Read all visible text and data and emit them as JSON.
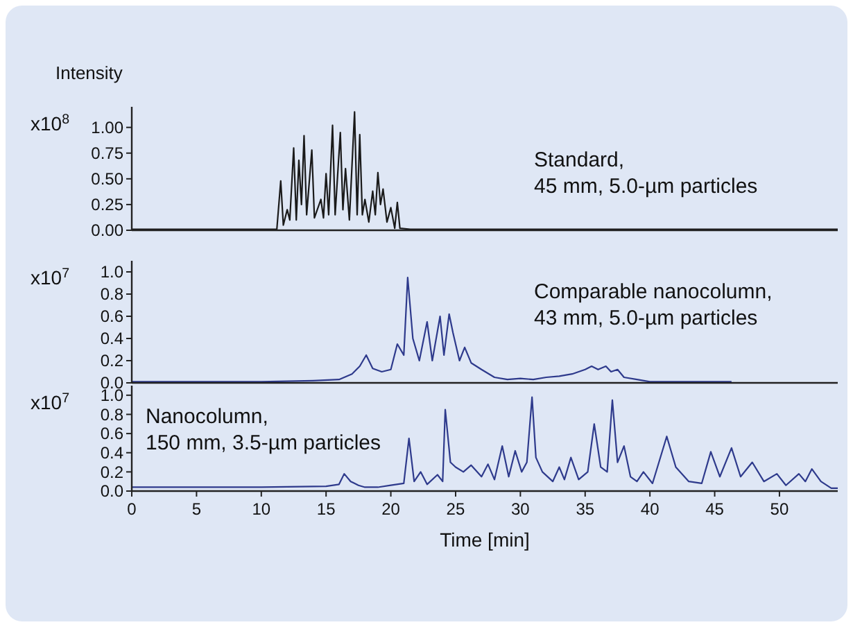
{
  "chart_data": [
    {
      "type": "line",
      "title": "Intensity",
      "ylabel": "x10$^{8}$",
      "annotations": [
        "Standard, \n45 mm, 5.0-µm particles"
      ],
      "tick_labels": "y",
      "xlim": [
        0,
        54.5
      ],
      "ylim": [
        0,
        1.2
      ],
      "yticks": [
        {
          "value": 0,
          "label": "0.00"
        },
        0.25,
        {
          "value": 0.5,
          "label": "0.50"
        },
        0.75,
        {
          "value": 1,
          "label": "1.00"
        }
      ],
      "series": [
        {
          "color": "#1a1a1a",
          "x": [
            0,
            10,
            11.2,
            11.5,
            11.7,
            12.0,
            12.2,
            12.5,
            12.7,
            12.9,
            13.1,
            13.3,
            13.5,
            13.9,
            14.1,
            14.6,
            14.8,
            15.0,
            15.2,
            15.5,
            15.7,
            16.1,
            16.3,
            16.5,
            16.8,
            17.2,
            17.4,
            17.6,
            17.8,
            18.0,
            18.3,
            18.6,
            18.8,
            19.0,
            19.2,
            19.4,
            19.7,
            20.0,
            20.3,
            20.5,
            20.7,
            21.5,
            25,
            30,
            40,
            54.5
          ],
          "values": [
            0.01,
            0.01,
            0.01,
            0.48,
            0.05,
            0.2,
            0.1,
            0.8,
            0.1,
            0.68,
            0.25,
            0.92,
            0.15,
            0.78,
            0.12,
            0.3,
            0.12,
            0.55,
            0.15,
            1.02,
            0.15,
            0.95,
            0.2,
            0.6,
            0.1,
            1.15,
            0.15,
            0.93,
            0.15,
            0.3,
            0.08,
            0.38,
            0.15,
            0.56,
            0.25,
            0.4,
            0.08,
            0.22,
            0.02,
            0.27,
            0.02,
            0.01,
            0.01,
            0.01,
            0.01,
            0.01
          ]
        }
      ]
    },
    {
      "type": "line",
      "ylabel": "x10$^{7}$",
      "annotations": [
        "Comparable nanocolumn,\n43 mm, 5.0-µm particles"
      ],
      "tick_labels": "y",
      "xlim": [
        0,
        54.5
      ],
      "ylim": [
        0,
        1.1
      ],
      "yticks": [
        {
          "value": 0,
          "label": "0.0"
        },
        0.2,
        0.4,
        0.6,
        0.8,
        {
          "value": 1,
          "label": "1.0"
        }
      ],
      "series": [
        {
          "color": "#2e3a8c",
          "x": [
            0,
            10,
            14,
            16,
            17,
            17.6,
            18.1,
            18.6,
            19.3,
            20,
            20.5,
            21.0,
            21.3,
            21.7,
            22.2,
            22.8,
            23.2,
            23.8,
            24.1,
            24.5,
            24.8,
            25.3,
            25.7,
            26.2,
            27,
            28,
            29,
            30,
            31,
            32,
            33,
            34,
            35,
            35.5,
            36,
            36.6,
            37,
            37.5,
            38,
            39,
            40,
            46.3
          ],
          "values": [
            0.01,
            0.01,
            0.02,
            0.03,
            0.08,
            0.15,
            0.25,
            0.13,
            0.1,
            0.12,
            0.35,
            0.25,
            0.95,
            0.4,
            0.2,
            0.55,
            0.2,
            0.6,
            0.25,
            0.62,
            0.45,
            0.2,
            0.32,
            0.18,
            0.12,
            0.05,
            0.03,
            0.04,
            0.03,
            0.05,
            0.06,
            0.08,
            0.12,
            0.15,
            0.12,
            0.15,
            0.1,
            0.12,
            0.05,
            0.03,
            0.01,
            0.01
          ]
        }
      ]
    },
    {
      "type": "line",
      "ylabel": "x10$^{7}$",
      "xlabel": "Time [min]",
      "annotations": [
        "Nanocolumn,\n150 mm, 3.5-µm particles"
      ],
      "xlim": [
        0,
        54.5
      ],
      "xticks": [
        0,
        5,
        10,
        15,
        20,
        25,
        30,
        35,
        40,
        45,
        50
      ],
      "ylim": [
        0,
        1.1
      ],
      "yticks": [
        {
          "value": 0,
          "label": "0.0"
        },
        0.2,
        0.4,
        0.6,
        0.8,
        {
          "value": 1,
          "label": "1.0"
        }
      ],
      "series": [
        {
          "color": "#2e3a8c",
          "x": [
            0,
            5,
            10,
            15,
            16,
            16.4,
            16.9,
            17.5,
            18,
            19,
            20,
            21,
            21.4,
            21.8,
            22.3,
            22.8,
            23.6,
            24.0,
            24.2,
            24.6,
            25,
            25.6,
            26.2,
            27,
            27.5,
            28,
            28.6,
            29.1,
            29.6,
            30.1,
            30.5,
            30.9,
            31.2,
            31.7,
            32.5,
            33,
            33.4,
            33.9,
            34.5,
            35.2,
            35.7,
            36.2,
            36.7,
            37.1,
            37.5,
            38.0,
            38.5,
            39,
            39.5,
            40.2,
            41.3,
            42,
            43,
            44,
            44.7,
            45.4,
            46.3,
            47,
            47.9,
            48.8,
            49.8,
            50.5,
            51.5,
            52,
            52.5,
            53.2,
            54,
            54.5
          ],
          "values": [
            0.04,
            0.04,
            0.04,
            0.05,
            0.07,
            0.18,
            0.1,
            0.06,
            0.04,
            0.04,
            0.06,
            0.08,
            0.55,
            0.1,
            0.2,
            0.07,
            0.17,
            0.1,
            0.85,
            0.3,
            0.25,
            0.2,
            0.27,
            0.15,
            0.28,
            0.12,
            0.47,
            0.15,
            0.42,
            0.2,
            0.3,
            0.98,
            0.35,
            0.2,
            0.1,
            0.25,
            0.12,
            0.35,
            0.12,
            0.2,
            0.7,
            0.25,
            0.2,
            0.95,
            0.3,
            0.47,
            0.15,
            0.1,
            0.2,
            0.08,
            0.57,
            0.25,
            0.1,
            0.08,
            0.41,
            0.15,
            0.45,
            0.15,
            0.3,
            0.1,
            0.18,
            0.06,
            0.18,
            0.1,
            0.23,
            0.1,
            0.03,
            0.03
          ]
        }
      ]
    }
  ]
}
